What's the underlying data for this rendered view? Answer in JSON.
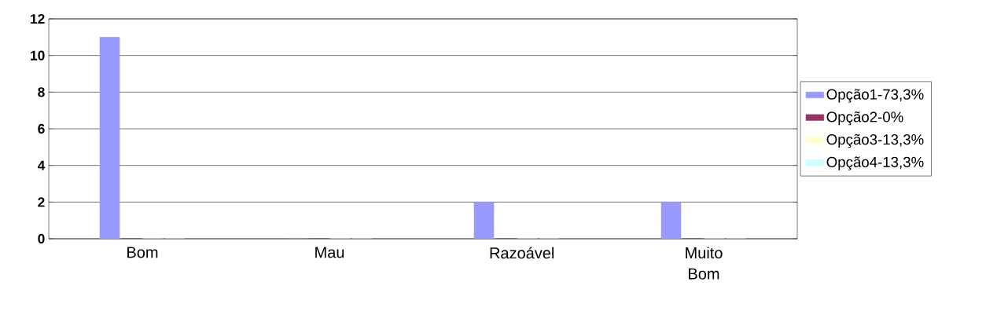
{
  "chart_data": {
    "type": "bar",
    "categories": [
      "Bom",
      "Mau",
      "Razoável",
      "Muito Bom"
    ],
    "series": [
      {
        "name": "Opção1-73,3%",
        "color": "#9999ff",
        "values": [
          11,
          0,
          2,
          2
        ]
      },
      {
        "name": "Opção2-0%",
        "color": "#993366",
        "values": [
          0,
          0,
          0,
          0
        ]
      },
      {
        "name": "Opção3-13,3%",
        "color": "#ffffcc",
        "values": [
          0,
          0,
          0,
          0
        ]
      },
      {
        "name": "Opção4-13,3%",
        "color": "#ccffff",
        "values": [
          0,
          0,
          0,
          0
        ]
      }
    ],
    "ylim": [
      0,
      12
    ],
    "yticks": [
      0,
      2,
      4,
      6,
      8,
      10,
      12
    ],
    "grid": "y",
    "legend": "right"
  }
}
